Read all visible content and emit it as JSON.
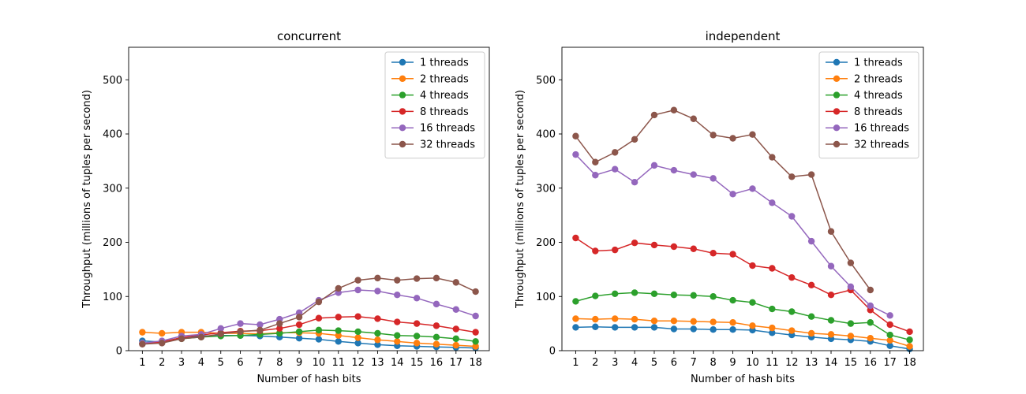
{
  "chart_data": [
    {
      "type": "line",
      "title": "concurrent",
      "xlabel": "Number of hash bits",
      "ylabel": "Throughput (millions of tuples per second)",
      "x": [
        1,
        2,
        3,
        4,
        5,
        6,
        7,
        8,
        9,
        10,
        11,
        12,
        13,
        14,
        15,
        16,
        17,
        18
      ],
      "xlim": [
        0.3,
        18.7
      ],
      "ylim": [
        0,
        560
      ],
      "yticks": [
        0,
        100,
        200,
        300,
        400,
        500
      ],
      "legend": "top-right",
      "series": [
        {
          "name": "1 threads",
          "color": "#1f77b4",
          "values": [
            18,
            16,
            24,
            27,
            28,
            28,
            27,
            25,
            23,
            21,
            17,
            14,
            11,
            9,
            8,
            7,
            6,
            5
          ]
        },
        {
          "name": "2 threads",
          "color": "#ff7f0e",
          "values": [
            34,
            32,
            34,
            34,
            32,
            32,
            31,
            33,
            33,
            32,
            28,
            24,
            20,
            17,
            14,
            12,
            10,
            8
          ]
        },
        {
          "name": "4 threads",
          "color": "#2ca02c",
          "values": [
            13,
            15,
            22,
            25,
            27,
            28,
            30,
            32,
            35,
            38,
            37,
            35,
            32,
            28,
            27,
            25,
            22,
            17
          ]
        },
        {
          "name": "8 threads",
          "color": "#d62728",
          "values": [
            13,
            16,
            24,
            29,
            33,
            36,
            37,
            41,
            48,
            60,
            62,
            63,
            59,
            53,
            50,
            46,
            40,
            34
          ]
        },
        {
          "name": "16 threads",
          "color": "#9467bd",
          "values": [
            14,
            18,
            27,
            30,
            41,
            50,
            48,
            58,
            70,
            93,
            107,
            112,
            110,
            103,
            97,
            86,
            76,
            64
          ]
        },
        {
          "name": "32 threads",
          "color": "#8c564b",
          "values": [
            12,
            14,
            22,
            25,
            31,
            35,
            38,
            50,
            62,
            90,
            115,
            130,
            134,
            130,
            133,
            134,
            126,
            109
          ]
        }
      ]
    },
    {
      "type": "line",
      "title": "independent",
      "xlabel": "Number of hash bits",
      "ylabel": "Throughput (millions of tuples per second)",
      "x": [
        1,
        2,
        3,
        4,
        5,
        6,
        7,
        8,
        9,
        10,
        11,
        12,
        13,
        14,
        15,
        16,
        17,
        18
      ],
      "xlim": [
        0.3,
        18.7
      ],
      "ylim": [
        0,
        560
      ],
      "yticks": [
        0,
        100,
        200,
        300,
        400,
        500
      ],
      "legend": "top-right",
      "series": [
        {
          "name": "1 threads",
          "color": "#1f77b4",
          "values": [
            43,
            44,
            43,
            43,
            43,
            40,
            40,
            39,
            39,
            38,
            33,
            29,
            25,
            22,
            20,
            17,
            9,
            3
          ]
        },
        {
          "name": "2 threads",
          "color": "#ff7f0e",
          "values": [
            59,
            58,
            59,
            58,
            55,
            55,
            54,
            53,
            52,
            46,
            42,
            37,
            32,
            30,
            27,
            23,
            19,
            8
          ]
        },
        {
          "name": "4 threads",
          "color": "#2ca02c",
          "values": [
            91,
            101,
            105,
            107,
            105,
            103,
            102,
            100,
            93,
            89,
            77,
            72,
            63,
            56,
            50,
            52,
            29,
            20
          ]
        },
        {
          "name": "8 threads",
          "color": "#d62728",
          "values": [
            208,
            184,
            186,
            199,
            195,
            192,
            188,
            180,
            178,
            157,
            152,
            135,
            121,
            103,
            112,
            75,
            48,
            35
          ]
        },
        {
          "name": "16 threads",
          "color": "#9467bd",
          "values": [
            362,
            324,
            335,
            311,
            342,
            333,
            325,
            318,
            289,
            299,
            273,
            248,
            202,
            156,
            118,
            83,
            65,
            null
          ]
        },
        {
          "name": "32 threads",
          "color": "#8c564b",
          "values": [
            396,
            348,
            366,
            390,
            435,
            444,
            428,
            398,
            392,
            399,
            357,
            321,
            325,
            220,
            162,
            112,
            null,
            null
          ]
        }
      ]
    }
  ]
}
